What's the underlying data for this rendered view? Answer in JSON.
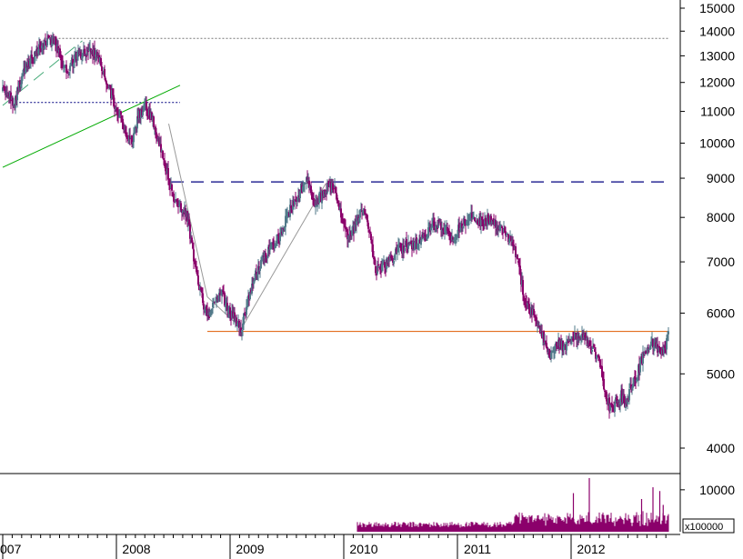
{
  "chart_data": {
    "type": "candlestick",
    "price_axis": {
      "scale": "log",
      "range": [
        3850,
        15000
      ],
      "ticks": [
        {
          "value": 15000,
          "label": "15000"
        },
        {
          "value": 14000,
          "label": "14000"
        },
        {
          "value": 13000,
          "label": "13000"
        },
        {
          "value": 12000,
          "label": "12000"
        },
        {
          "value": 11000,
          "label": "11000"
        },
        {
          "value": 10000,
          "label": "10000"
        },
        {
          "value": 9000,
          "label": "9000"
        },
        {
          "value": 8000,
          "label": "8000"
        },
        {
          "value": 7000,
          "label": "7000"
        },
        {
          "value": 6000,
          "label": "6000"
        },
        {
          "value": 5000,
          "label": "5000"
        },
        {
          "value": 4000,
          "label": "4000"
        }
      ]
    },
    "volume_axis": {
      "range": [
        0,
        13000
      ],
      "ticks": [
        {
          "value": 10000,
          "label": "10000"
        }
      ],
      "unit_label": "x100000"
    },
    "time_axis": {
      "range": [
        2007.0,
        2012.86
      ],
      "year_labels": [
        {
          "value": 2007,
          "label": "007"
        },
        {
          "value": 2008,
          "label": "2008"
        },
        {
          "value": 2009,
          "label": "2009"
        },
        {
          "value": 2010,
          "label": "2010"
        },
        {
          "value": 2011,
          "label": "2011"
        },
        {
          "value": 2012,
          "label": "2012"
        }
      ]
    },
    "price_path": [
      [
        2007.0,
        11700
      ],
      [
        2007.06,
        11500
      ],
      [
        2007.1,
        11300
      ],
      [
        2007.18,
        12400
      ],
      [
        2007.26,
        12900
      ],
      [
        2007.36,
        13500
      ],
      [
        2007.44,
        13700
      ],
      [
        2007.5,
        13000
      ],
      [
        2007.56,
        12400
      ],
      [
        2007.62,
        12900
      ],
      [
        2007.7,
        13100
      ],
      [
        2007.78,
        13200
      ],
      [
        2007.86,
        12800
      ],
      [
        2007.92,
        12000
      ],
      [
        2007.98,
        11300
      ],
      [
        2008.04,
        10800
      ],
      [
        2008.08,
        10300
      ],
      [
        2008.14,
        10100
      ],
      [
        2008.2,
        10900
      ],
      [
        2008.26,
        11200
      ],
      [
        2008.32,
        10700
      ],
      [
        2008.38,
        9900
      ],
      [
        2008.46,
        9000
      ],
      [
        2008.5,
        8400
      ],
      [
        2008.56,
        8300
      ],
      [
        2008.62,
        8100
      ],
      [
        2008.66,
        7400
      ],
      [
        2008.72,
        6600
      ],
      [
        2008.76,
        6200
      ],
      [
        2008.8,
        5900
      ],
      [
        2008.86,
        6200
      ],
      [
        2008.92,
        6400
      ],
      [
        2008.98,
        6100
      ],
      [
        2009.04,
        5900
      ],
      [
        2009.1,
        5750
      ],
      [
        2009.16,
        6300
      ],
      [
        2009.22,
        6700
      ],
      [
        2009.28,
        7100
      ],
      [
        2009.36,
        7300
      ],
      [
        2009.44,
        7600
      ],
      [
        2009.5,
        8000
      ],
      [
        2009.56,
        8400
      ],
      [
        2009.62,
        8700
      ],
      [
        2009.68,
        8900
      ],
      [
        2009.74,
        8400
      ],
      [
        2009.8,
        8500
      ],
      [
        2009.86,
        8800
      ],
      [
        2009.92,
        8700
      ],
      [
        2009.98,
        8000
      ],
      [
        2010.04,
        7500
      ],
      [
        2010.1,
        7800
      ],
      [
        2010.16,
        8200
      ],
      [
        2010.22,
        7800
      ],
      [
        2010.28,
        6800
      ],
      [
        2010.34,
        6900
      ],
      [
        2010.4,
        7000
      ],
      [
        2010.46,
        7200
      ],
      [
        2010.52,
        7300
      ],
      [
        2010.58,
        7400
      ],
      [
        2010.64,
        7400
      ],
      [
        2010.7,
        7500
      ],
      [
        2010.78,
        7900
      ],
      [
        2010.84,
        7800
      ],
      [
        2010.9,
        7700
      ],
      [
        2010.96,
        7500
      ],
      [
        2011.02,
        7800
      ],
      [
        2011.08,
        7900
      ],
      [
        2011.14,
        8050
      ],
      [
        2011.2,
        7900
      ],
      [
        2011.28,
        7950
      ],
      [
        2011.34,
        7800
      ],
      [
        2011.4,
        7700
      ],
      [
        2011.46,
        7500
      ],
      [
        2011.52,
        7100
      ],
      [
        2011.56,
        6600
      ],
      [
        2011.6,
        6200
      ],
      [
        2011.66,
        6000
      ],
      [
        2011.72,
        5800
      ],
      [
        2011.78,
        5400
      ],
      [
        2011.82,
        5300
      ],
      [
        2011.88,
        5500
      ],
      [
        2011.94,
        5400
      ],
      [
        2012.0,
        5600
      ],
      [
        2012.06,
        5550
      ],
      [
        2012.12,
        5600
      ],
      [
        2012.18,
        5400
      ],
      [
        2012.24,
        5200
      ],
      [
        2012.28,
        4900
      ],
      [
        2012.34,
        4500
      ],
      [
        2012.4,
        4600
      ],
      [
        2012.44,
        4700
      ],
      [
        2012.48,
        4550
      ],
      [
        2012.52,
        4800
      ],
      [
        2012.58,
        5000
      ],
      [
        2012.64,
        5300
      ],
      [
        2012.7,
        5500
      ],
      [
        2012.76,
        5400
      ],
      [
        2012.8,
        5300
      ],
      [
        2012.84,
        5500
      ],
      [
        2012.86,
        5700
      ]
    ],
    "volume_range": [
      2010.12,
      2012.86
    ],
    "volume_series": [
      [
        2012.02,
        9200
      ],
      [
        2012.16,
        12800
      ],
      [
        2012.62,
        7800
      ],
      [
        2012.72,
        10600
      ],
      [
        2012.78,
        9700
      ],
      [
        2012.81,
        6400
      ]
    ],
    "overlay_lines": [
      {
        "kind": "horizontal",
        "style": "dotted",
        "color": "#777777",
        "y": 13700,
        "x": [
          2007.46,
          2012.86
        ]
      },
      {
        "kind": "horizontal",
        "style": "dotted",
        "color": "#000080",
        "y": 11300,
        "x": [
          2007.05,
          2008.56
        ]
      },
      {
        "kind": "horizontal",
        "style": "dashed",
        "color": "#000080",
        "y": 8900,
        "x": [
          2008.48,
          2012.86
        ]
      },
      {
        "kind": "horizontal",
        "style": "solid",
        "color": "#e05a00",
        "y": 5680,
        "x": [
          2008.8,
          2012.86
        ]
      },
      {
        "kind": "trend",
        "style": "solid",
        "color": "#00aa00",
        "points": [
          [
            2007.0,
            9300
          ],
          [
            2008.56,
            11900
          ]
        ]
      },
      {
        "kind": "trend",
        "style": "dashed",
        "color": "#44aa77",
        "points": [
          [
            2007.0,
            11200
          ],
          [
            2007.7,
            13600
          ]
        ]
      },
      {
        "kind": "trend",
        "style": "solid",
        "color": "#999999",
        "points": [
          [
            2008.46,
            10600
          ],
          [
            2008.8,
            6300
          ],
          [
            2009.1,
            5730
          ],
          [
            2009.84,
            8850
          ]
        ]
      }
    ],
    "colors": {
      "up": "#527a8a",
      "down": "#8b006b",
      "volume": "#8b006b",
      "axis": "#000000"
    }
  }
}
